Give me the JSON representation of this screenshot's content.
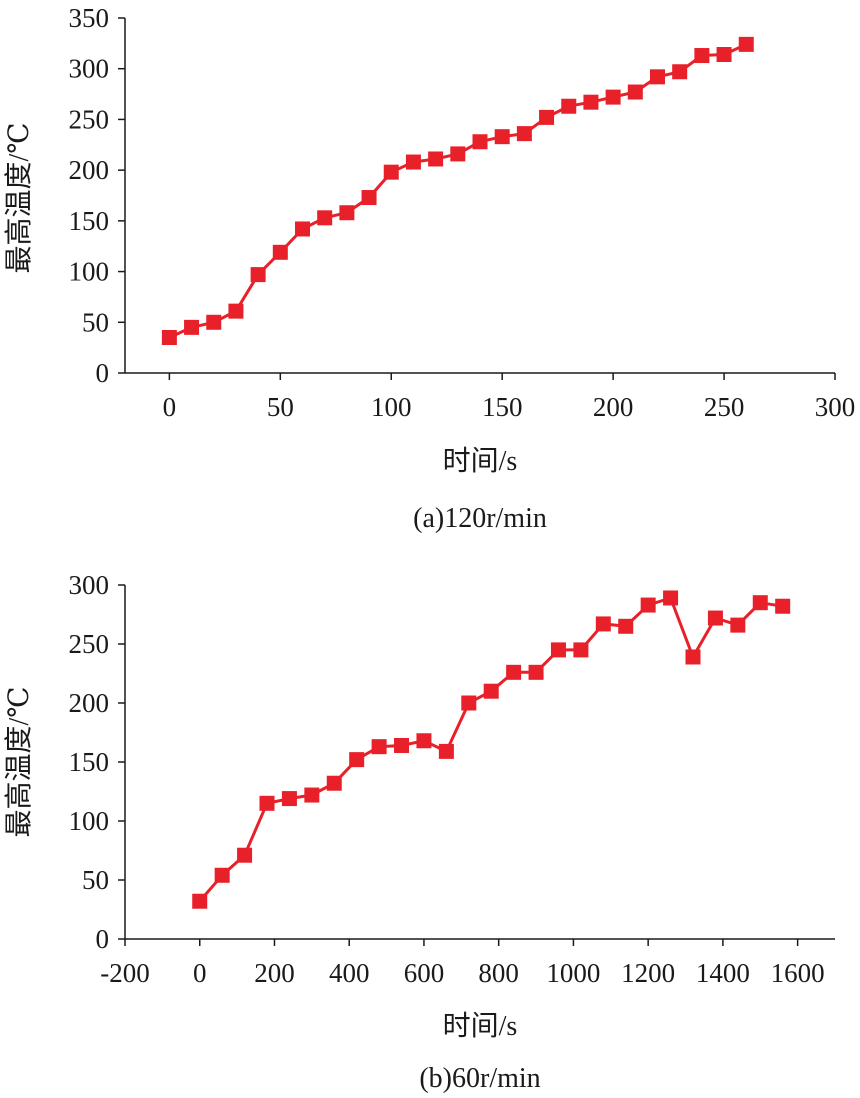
{
  "chart_data": [
    {
      "type": "line",
      "caption": "(a)120r/min",
      "xlabel": "时间/s",
      "ylabel": "最高温度/℃",
      "xlim": [
        -20,
        300
      ],
      "ylim": [
        0,
        350
      ],
      "xticks": [
        0,
        50,
        100,
        150,
        200,
        250,
        300
      ],
      "yticks": [
        0,
        50,
        100,
        150,
        200,
        250,
        300,
        350
      ],
      "color": "#e8202a",
      "marker": "square",
      "grid": false,
      "x": [
        0,
        10,
        20,
        30,
        40,
        50,
        60,
        70,
        80,
        90,
        100,
        110,
        120,
        130,
        140,
        150,
        160,
        170,
        180,
        190,
        200,
        210,
        220,
        230,
        240,
        250,
        260
      ],
      "y": [
        35,
        45,
        50,
        61,
        97,
        119,
        142,
        153,
        158,
        173,
        198,
        208,
        211,
        216,
        228,
        233,
        236,
        252,
        263,
        267,
        272,
        277,
        292,
        297,
        313,
        314,
        324
      ]
    },
    {
      "type": "line",
      "caption": "(b)60r/min",
      "xlabel": "时间/s",
      "ylabel": "最高温度/℃",
      "xlim": [
        -200,
        1700
      ],
      "ylim": [
        0,
        300
      ],
      "xticks": [
        -200,
        0,
        200,
        400,
        600,
        800,
        1000,
        1200,
        1400,
        1600
      ],
      "yticks": [
        0,
        50,
        100,
        150,
        200,
        250,
        300
      ],
      "color": "#e8202a",
      "marker": "square",
      "grid": false,
      "x": [
        0,
        60,
        120,
        180,
        240,
        300,
        360,
        420,
        480,
        540,
        600,
        660,
        720,
        780,
        840,
        900,
        960,
        1020,
        1080,
        1140,
        1200,
        1260,
        1320,
        1380,
        1440,
        1500,
        1560
      ],
      "y": [
        32,
        54,
        71,
        115,
        119,
        122,
        132,
        152,
        163,
        164,
        168,
        159,
        200,
        210,
        226,
        226,
        245,
        245,
        267,
        265,
        283,
        289,
        239,
        272,
        266,
        285,
        282
      ]
    }
  ]
}
